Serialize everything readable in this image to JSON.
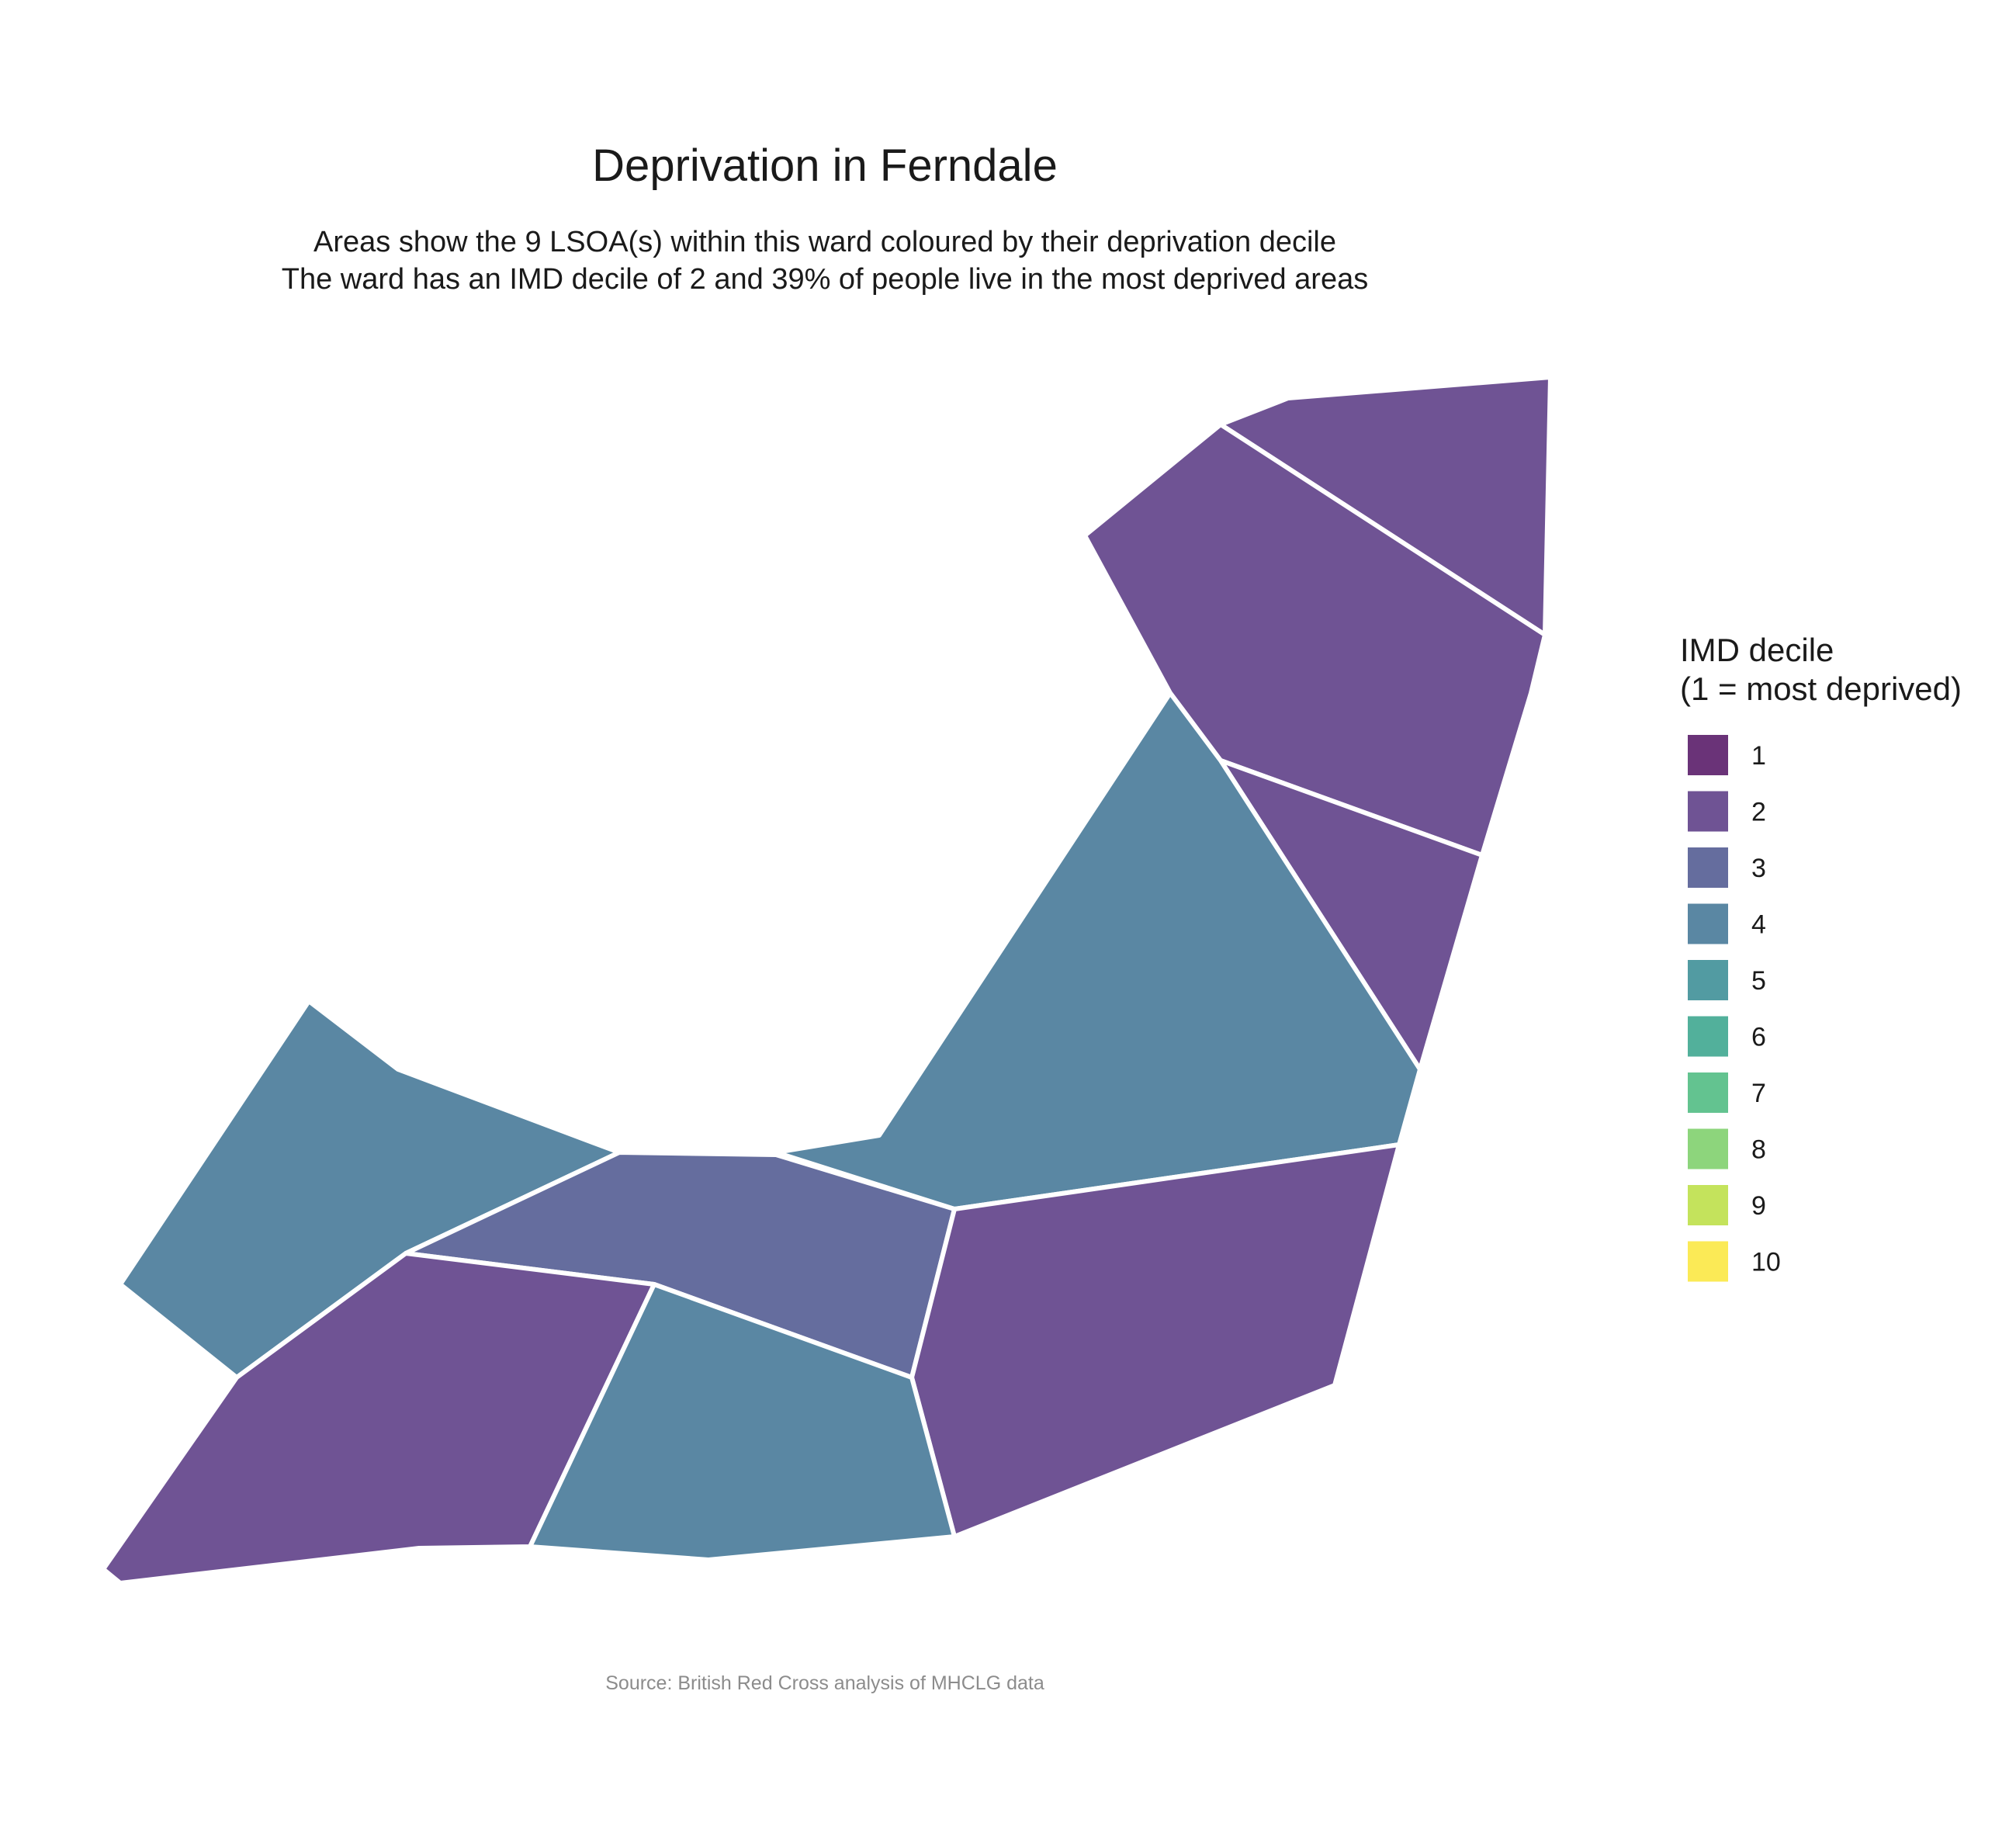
{
  "chart_data": {
    "type": "choropleth",
    "title": "Deprivation in Ferndale",
    "subtitle_lines": [
      "Areas show the 9 LSOA(s) within this ward coloured by their deprivation decile",
      "The ward has an IMD decile of 2 and 39% of people live in the most deprived areas"
    ],
    "caption": "Source: British Red Cross analysis of MHCLG data",
    "legend": {
      "title_lines": [
        "IMD decile",
        "(1 = most deprived)"
      ],
      "placement": "right",
      "entries": [
        {
          "label": "1",
          "color": "#6a3378"
        },
        {
          "label": "2",
          "color": "#6f5394"
        },
        {
          "label": "3",
          "color": "#656d9e"
        },
        {
          "label": "4",
          "color": "#5a87a3"
        },
        {
          "label": "5",
          "color": "#529ba2"
        },
        {
          "label": "6",
          "color": "#52b09b"
        },
        {
          "label": "7",
          "color": "#63c390"
        },
        {
          "label": "8",
          "color": "#8dd57c"
        },
        {
          "label": "9",
          "color": "#c4e35c"
        },
        {
          "label": "10",
          "color": "#fbea56"
        }
      ]
    },
    "areas": [
      {
        "decile": 2
      },
      {
        "decile": 2
      },
      {
        "decile": 2
      },
      {
        "decile": 4
      },
      {
        "decile": 4
      },
      {
        "decile": 3
      },
      {
        "decile": 2
      },
      {
        "decile": 2
      },
      {
        "decile": 4
      }
    ]
  }
}
